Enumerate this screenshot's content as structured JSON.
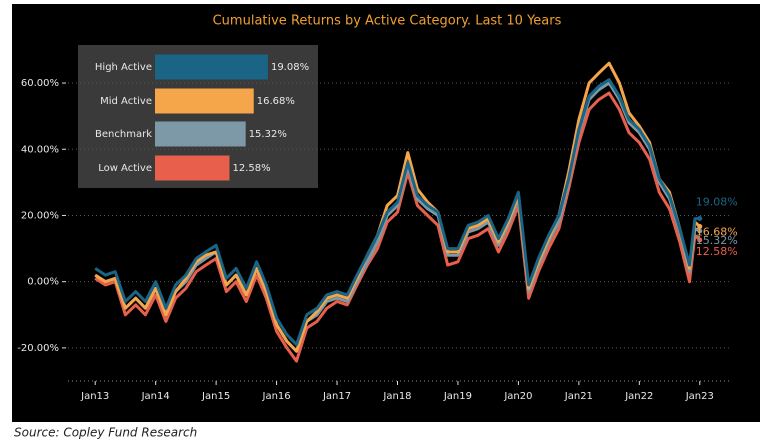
{
  "chart_data": [
    {
      "type": "line",
      "title": "Cumulative Returns by Active Category.  Last 10 Years",
      "x": [
        2013,
        2013.17,
        2013.33,
        2013.5,
        2013.67,
        2013.83,
        2014,
        2014.17,
        2014.33,
        2014.5,
        2014.67,
        2014.83,
        2015,
        2015.17,
        2015.33,
        2015.5,
        2015.67,
        2015.83,
        2016,
        2016.17,
        2016.33,
        2016.5,
        2016.67,
        2016.83,
        2017,
        2017.17,
        2017.33,
        2017.5,
        2017.67,
        2017.83,
        2018,
        2018.17,
        2018.33,
        2018.5,
        2018.67,
        2018.83,
        2019,
        2019.17,
        2019.33,
        2019.5,
        2019.67,
        2019.83,
        2020,
        2020.17,
        2020.33,
        2020.5,
        2020.67,
        2020.83,
        2021,
        2021.17,
        2021.33,
        2021.5,
        2021.67,
        2021.83,
        2022,
        2022.17,
        2022.33,
        2022.5,
        2022.67,
        2022.83,
        2022.92,
        2023
      ],
      "series": [
        {
          "name": "Low Active",
          "color": "#e8604c",
          "values": [
            1,
            -1,
            0,
            -10,
            -7,
            -10,
            -4,
            -12,
            -5,
            -2,
            3,
            5,
            7,
            -3,
            0,
            -6,
            2,
            -5,
            -15,
            -20,
            -24,
            -14,
            -12,
            -8,
            -6,
            -7,
            -1,
            5,
            10,
            18,
            21,
            33,
            23,
            20,
            17,
            5,
            6,
            13,
            14,
            16,
            9,
            15,
            23,
            -5,
            3,
            10,
            16,
            28,
            42,
            52,
            55,
            57,
            52,
            45,
            42,
            37,
            27,
            22,
            12,
            0,
            14,
            12.58
          ]
        },
        {
          "name": "Benchmark",
          "color": "#7d98a6",
          "values": [
            2,
            0,
            1,
            -8,
            -5,
            -8,
            -2,
            -10,
            -3,
            0,
            5,
            7,
            9,
            -1,
            2,
            -4,
            4,
            -3,
            -13,
            -18,
            -21,
            -12,
            -10,
            -6,
            -5,
            -6,
            0,
            6,
            12,
            20,
            23,
            35,
            25,
            22,
            20,
            8,
            8,
            15,
            16,
            18,
            11,
            17,
            25,
            -3,
            5,
            12,
            18,
            30,
            45,
            55,
            58,
            60,
            55,
            48,
            45,
            40,
            30,
            25,
            15,
            3,
            16,
            15.32
          ]
        },
        {
          "name": "Mid Active",
          "color": "#f5a54a",
          "values": [
            2,
            0,
            1,
            -8,
            -5,
            -8,
            -2,
            -10,
            -3,
            1,
            6,
            8,
            9,
            -1,
            2,
            -4,
            4,
            -3,
            -13,
            -18,
            -21,
            -12,
            -9,
            -5,
            -4,
            -5,
            1,
            8,
            14,
            23,
            26,
            39,
            28,
            24,
            21,
            9,
            9,
            16,
            17,
            19,
            12,
            18,
            26,
            -2,
            6,
            13,
            20,
            33,
            49,
            60,
            63,
            66,
            60,
            51,
            47,
            42,
            31,
            27,
            16,
            4,
            18,
            16.68
          ]
        },
        {
          "name": "High Active",
          "color": "#1a6585",
          "values": [
            4,
            2,
            3,
            -6,
            -3,
            -6,
            0,
            -8,
            -1,
            2,
            7,
            9,
            11,
            1,
            4,
            -2,
            6,
            -1,
            -11,
            -16,
            -19,
            -10,
            -8,
            -4,
            -3,
            -4,
            2,
            8,
            14,
            21,
            24,
            36,
            26,
            23,
            21,
            10,
            10,
            17,
            18,
            20,
            13,
            19,
            27,
            -1,
            7,
            14,
            20,
            31,
            46,
            56,
            59,
            61,
            56,
            49,
            46,
            41,
            31,
            26,
            16,
            5,
            19,
            19.08
          ]
        }
      ],
      "xlim": [
        2012.55,
        2023.5
      ],
      "xticks": [
        {
          "value": 2013,
          "label": "Jan13"
        },
        {
          "value": 2014,
          "label": "Jan14"
        },
        {
          "value": 2015,
          "label": "Jan15"
        },
        {
          "value": 2016,
          "label": "Jan16"
        },
        {
          "value": 2017,
          "label": "Jan17"
        },
        {
          "value": 2018,
          "label": "Jan18"
        },
        {
          "value": 2019,
          "label": "Jan19"
        },
        {
          "value": 2020,
          "label": "Jan20"
        },
        {
          "value": 2021,
          "label": "Jan21"
        },
        {
          "value": 2022,
          "label": "Jan22"
        },
        {
          "value": 2023,
          "label": "Jan23"
        }
      ],
      "ylim": [
        -30,
        73
      ],
      "yticks": [
        {
          "value": -20,
          "label": "-20.00%"
        },
        {
          "value": 0,
          "label": "0.00%"
        },
        {
          "value": 20,
          "label": "20.00%"
        },
        {
          "value": 40,
          "label": "40.00%"
        },
        {
          "value": 60,
          "label": "60.00%"
        }
      ],
      "grid": true
    },
    {
      "type": "bar",
      "orientation": "horizontal",
      "categories": [
        "High Active",
        "Mid Active",
        "Benchmark",
        "Low Active"
      ],
      "values": [
        19.08,
        16.68,
        15.32,
        12.58
      ],
      "value_labels": [
        "19.08%",
        "16.68%",
        "15.32%",
        "12.58%"
      ],
      "colors": [
        "#1a6585",
        "#f5a54a",
        "#7d98a6",
        "#e8604c"
      ]
    }
  ],
  "source": "Source: Copley Fund Research"
}
